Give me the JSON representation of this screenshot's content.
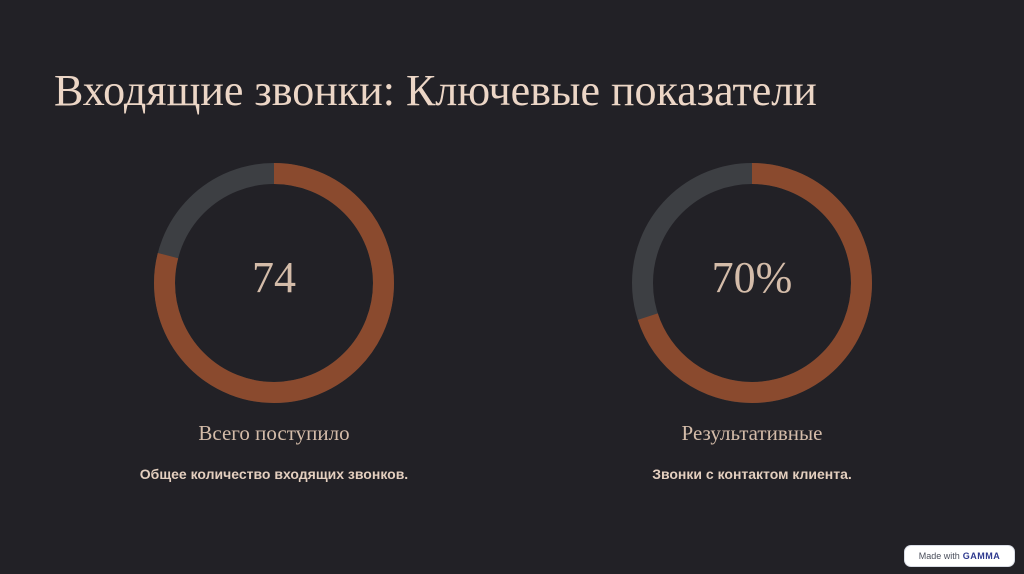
{
  "page": {
    "title": "Входящие звонки: Ключевые показатели"
  },
  "stats": [
    {
      "value": "74",
      "label": "Всего поступило",
      "description": "Общее количество входящих звонков.",
      "fill_fraction": 0.79
    },
    {
      "value": "70%",
      "label": "Результативные",
      "description": "Звонки с контактом клиента.",
      "fill_fraction": 0.7
    }
  ],
  "badge": {
    "prefix": "Made with",
    "brand": "GAMMA"
  },
  "colors": {
    "background": "#222126",
    "ring_track": "#3d3f43",
    "ring_fill": "#8a4a2e",
    "text_primary": "#ecd6c6",
    "text_secondary": "#d4bca9"
  }
}
